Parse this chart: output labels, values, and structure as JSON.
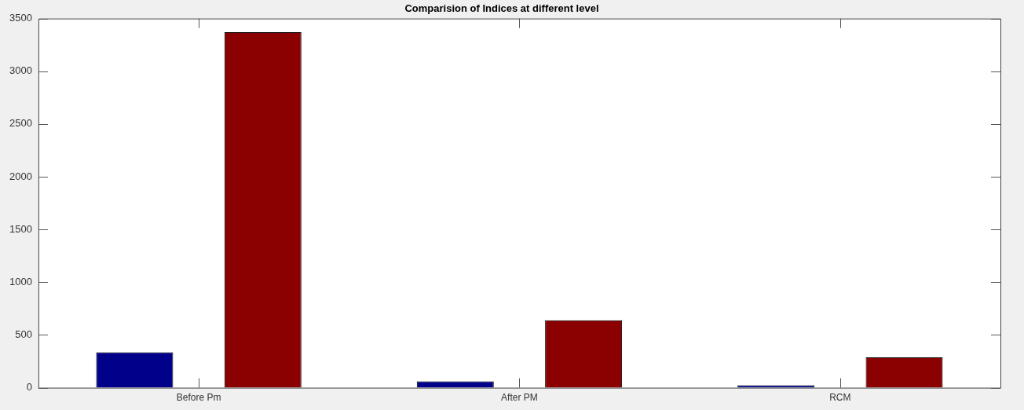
{
  "chart_data": {
    "type": "bar",
    "title": "Comparision of Indices at different level",
    "categories": [
      "Before Pm",
      "After PM",
      "RCM"
    ],
    "series": [
      {
        "color": "#00008b",
        "values": [
          335,
          60,
          24
        ]
      },
      {
        "color": "#8b0000",
        "values": [
          3370,
          640,
          288
        ]
      }
    ],
    "ylim": [
      0,
      3500
    ],
    "yticks": [
      0,
      500,
      1000,
      1500,
      2000,
      2500,
      3000,
      3500
    ],
    "grid": false,
    "legend": false
  }
}
